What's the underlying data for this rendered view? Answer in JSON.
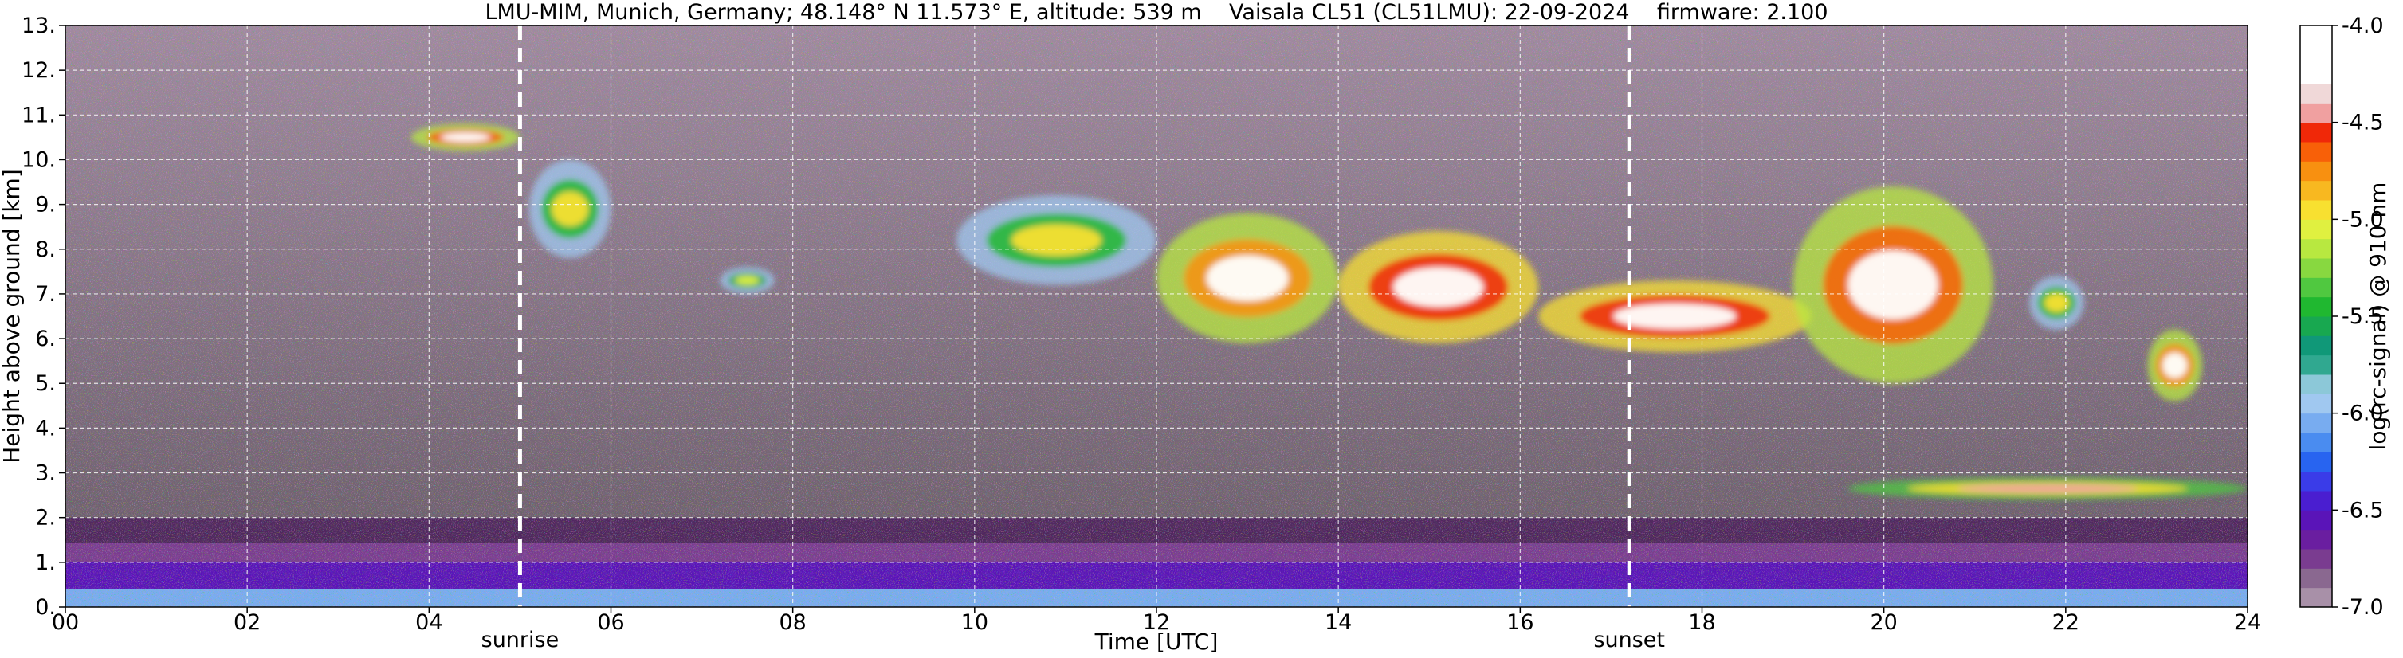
{
  "chart_data": {
    "type": "heatmap",
    "title": "LMU-MIM, Munich, Germany; 48.148° N 11.573° E, altitude: 539 m    Vaisala CL51 (CL51LMU): 22-09-2024    firmware: 2.100",
    "xlabel": "Time [UTC]",
    "ylabel": "Height above ground [km]",
    "colorbar_label": "log(rc-signal) @ 910 nm",
    "xlim": [
      0,
      24
    ],
    "ylim": [
      0,
      13
    ],
    "clim": [
      -7.0,
      -4.0
    ],
    "grid": true,
    "x_ticks": [
      0,
      2,
      4,
      6,
      8,
      10,
      12,
      14,
      16,
      18,
      20,
      22,
      24
    ],
    "x_tick_labels": [
      "00",
      "02",
      "04",
      "06",
      "08",
      "10",
      "12",
      "14",
      "16",
      "18",
      "20",
      "22",
      "24"
    ],
    "y_ticks": [
      0,
      1,
      2,
      3,
      4,
      5,
      6,
      7,
      8,
      9,
      10,
      11,
      12,
      13
    ],
    "y_tick_labels": [
      "0.",
      "1.",
      "2.",
      "3.",
      "4.",
      "5.",
      "6.",
      "7.",
      "8.",
      "9.",
      "10.",
      "11.",
      "12.",
      "13."
    ],
    "colorbar_ticks": [
      -7.0,
      -6.5,
      -6.0,
      -5.5,
      -5.0,
      -4.5,
      -4.0
    ],
    "colorbar_tick_labels": [
      "-7.0",
      "-6.5",
      "-6.0",
      "-5.5",
      "-5.0",
      "-4.5",
      "-4.0"
    ],
    "colormap": [
      "#a890a8",
      "#8a6890",
      "#7a3c90",
      "#6a1ea0",
      "#5a14b8",
      "#4a1ed0",
      "#3a3ce8",
      "#2864f0",
      "#4a8cf0",
      "#78acf0",
      "#a0c8f0",
      "#8cc8d8",
      "#30a890",
      "#109878",
      "#18a850",
      "#20b830",
      "#50c840",
      "#88d840",
      "#b8e840",
      "#e0f040",
      "#f8e030",
      "#f8b820",
      "#f89010",
      "#f86008",
      "#f02808",
      "#f0a0a0",
      "#f0d8d8",
      "#ffffff",
      "#ffffff",
      "#ffffff"
    ],
    "reference_lines": [
      {
        "label": "sunrise",
        "x": 5.0
      },
      {
        "label": "sunset",
        "x": 17.2
      }
    ],
    "background_layers": [
      {
        "from_km": 0.0,
        "to_km": 0.4,
        "log_signal": -6.1
      },
      {
        "from_km": 0.4,
        "to_km": 1.0,
        "log_signal": -6.6
      },
      {
        "from_km": 1.0,
        "to_km": 2.0,
        "log_signal": -6.8
      },
      {
        "from_km": 2.0,
        "to_km": 13.0,
        "log_signal": -6.9
      }
    ],
    "cloud_features": [
      {
        "time_start": 3.8,
        "time_end": 5.0,
        "base_km": 10.2,
        "top_km": 10.8,
        "peak_log_signal": -4.2
      },
      {
        "time_start": 5.1,
        "time_end": 6.0,
        "base_km": 7.8,
        "top_km": 10.0,
        "peak_log_signal": -5.0
      },
      {
        "time_start": 7.2,
        "time_end": 7.8,
        "base_km": 7.0,
        "top_km": 7.6,
        "peak_log_signal": -5.1
      },
      {
        "time_start": 9.8,
        "time_end": 12.0,
        "base_km": 7.2,
        "top_km": 9.2,
        "peak_log_signal": -5.0
      },
      {
        "time_start": 12.0,
        "time_end": 14.0,
        "base_km": 5.9,
        "top_km": 8.8,
        "peak_log_signal": -4.3
      },
      {
        "time_start": 14.0,
        "time_end": 16.2,
        "base_km": 5.9,
        "top_km": 8.4,
        "peak_log_signal": -4.1
      },
      {
        "time_start": 16.2,
        "time_end": 19.2,
        "base_km": 5.7,
        "top_km": 7.3,
        "peak_log_signal": -4.1
      },
      {
        "time_start": 19.0,
        "time_end": 21.2,
        "base_km": 5.0,
        "top_km": 9.4,
        "peak_log_signal": -4.2
      },
      {
        "time_start": 21.6,
        "time_end": 22.2,
        "base_km": 6.2,
        "top_km": 7.4,
        "peak_log_signal": -5.0
      },
      {
        "time_start": 22.9,
        "time_end": 23.5,
        "base_km": 4.6,
        "top_km": 6.2,
        "peak_log_signal": -4.3
      },
      {
        "time_start": 19.6,
        "time_end": 24.0,
        "base_km": 2.4,
        "top_km": 2.9,
        "peak_log_signal": -4.4
      }
    ]
  }
}
